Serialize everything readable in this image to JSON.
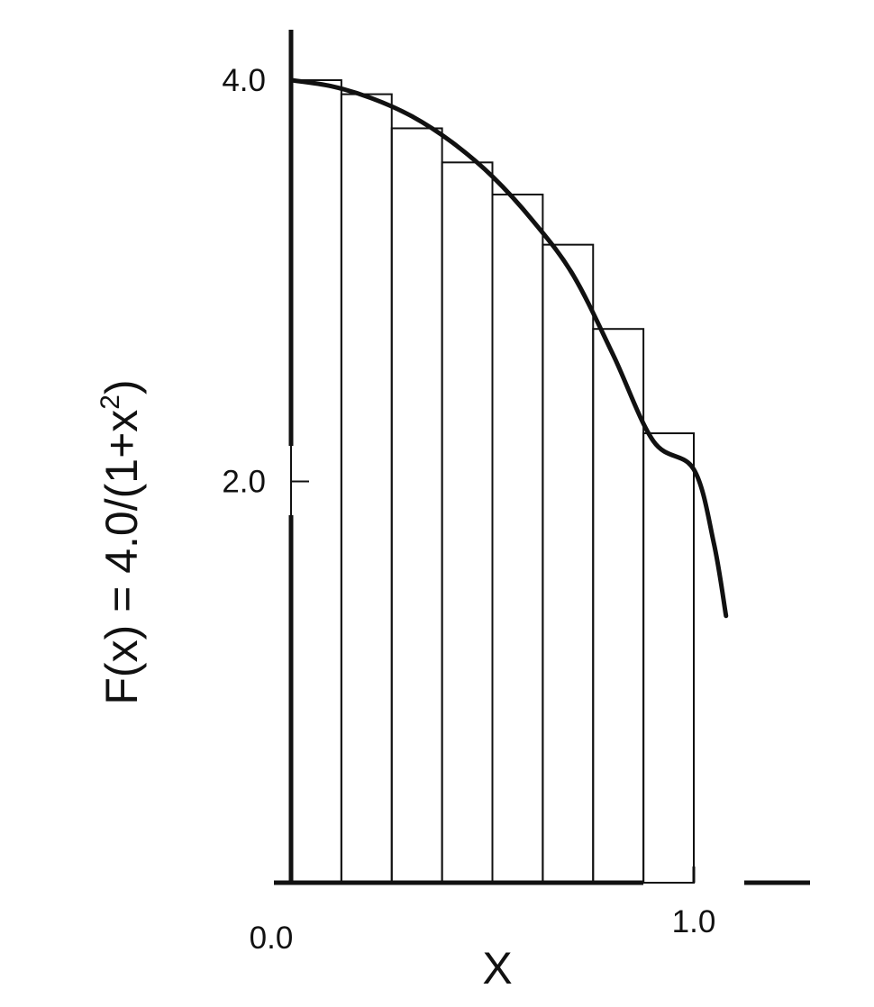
{
  "chart_data": {
    "type": "bar",
    "title": "",
    "xlabel": "X",
    "ylabel_main": "F(x) = 4.0/(1+x",
    "ylabel_superscript": "2",
    "ylabel_close": ")",
    "xlim": [
      0.0,
      1.0
    ],
    "ylim": [
      0.0,
      4.0
    ],
    "x_ticks": [
      {
        "value": 0.0,
        "label": "0.0"
      },
      {
        "value": 1.0,
        "label": "1.0"
      }
    ],
    "y_ticks": [
      {
        "value": 2.0,
        "label": "2.0"
      },
      {
        "value": 4.0,
        "label": "4.0"
      }
    ],
    "bar_width": 0.125,
    "bars": [
      {
        "x_start": 0.0,
        "x_end": 0.125,
        "height": 4.0
      },
      {
        "x_start": 0.125,
        "x_end": 0.25,
        "height": 3.93
      },
      {
        "x_start": 0.25,
        "x_end": 0.375,
        "height": 3.76
      },
      {
        "x_start": 0.375,
        "x_end": 0.5,
        "height": 3.59
      },
      {
        "x_start": 0.5,
        "x_end": 0.625,
        "height": 3.43
      },
      {
        "x_start": 0.625,
        "x_end": 0.75,
        "height": 3.18
      },
      {
        "x_start": 0.75,
        "x_end": 0.875,
        "height": 2.76
      },
      {
        "x_start": 0.875,
        "x_end": 1.0,
        "height": 2.24
      }
    ],
    "curve": {
      "points": [
        [
          0.0,
          4.0
        ],
        [
          0.1,
          3.97
        ],
        [
          0.2,
          3.91
        ],
        [
          0.3,
          3.82
        ],
        [
          0.4,
          3.69
        ],
        [
          0.5,
          3.52
        ],
        [
          0.6,
          3.3
        ],
        [
          0.7,
          3.03
        ],
        [
          0.8,
          2.63
        ],
        [
          0.9,
          2.2
        ],
        [
          1.0,
          2.06
        ],
        [
          1.05,
          1.69
        ],
        [
          1.08,
          1.33
        ]
      ]
    },
    "grid": false,
    "legend": "none"
  }
}
